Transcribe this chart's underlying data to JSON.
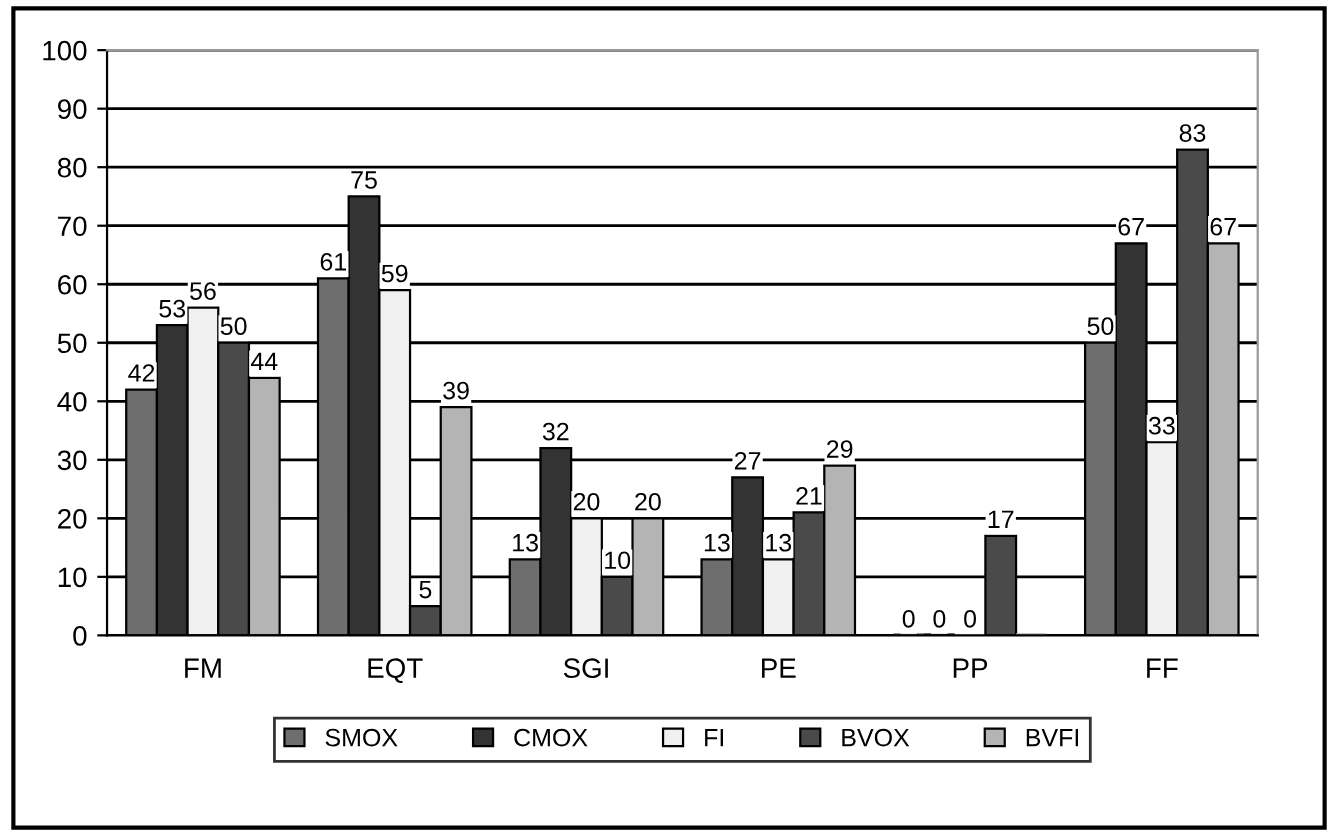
{
  "chart_data": {
    "type": "bar",
    "categories": [
      "FM",
      "EQT",
      "SGI",
      "PE",
      "PP",
      "FF"
    ],
    "series": [
      {
        "name": "SMOX",
        "color": "#6e6e6e",
        "values": [
          42,
          61,
          13,
          13,
          0,
          50
        ],
        "value_labels": [
          "42",
          "61",
          "13",
          "13",
          "0",
          "50"
        ]
      },
      {
        "name": "CMOX",
        "color": "#333333",
        "values": [
          53,
          75,
          32,
          27,
          0,
          67
        ],
        "value_labels": [
          "53",
          "75",
          "32",
          "27",
          "0",
          "67"
        ]
      },
      {
        "name": "FI",
        "color": "#f0f0f0",
        "values": [
          56,
          59,
          20,
          13,
          0,
          33
        ],
        "value_labels": [
          "56",
          "59",
          "20",
          "13",
          "0",
          "33"
        ]
      },
      {
        "name": "BVOX",
        "color": "#4a4a4a",
        "values": [
          50,
          5,
          10,
          21,
          17,
          83
        ],
        "value_labels": [
          "50",
          "5",
          "10",
          "21",
          "17",
          "83"
        ]
      },
      {
        "name": "BVFI",
        "color": "#b4b4b4",
        "values": [
          44,
          39,
          20,
          29,
          0,
          67
        ],
        "value_labels": [
          "44",
          "39",
          "20",
          "29",
          null,
          "67"
        ]
      }
    ],
    "ylim": [
      0,
      100
    ],
    "yticks": [
      0,
      10,
      20,
      30,
      40,
      50,
      60,
      70,
      80,
      90,
      100
    ],
    "grid": "y",
    "legend": "bottom"
  }
}
